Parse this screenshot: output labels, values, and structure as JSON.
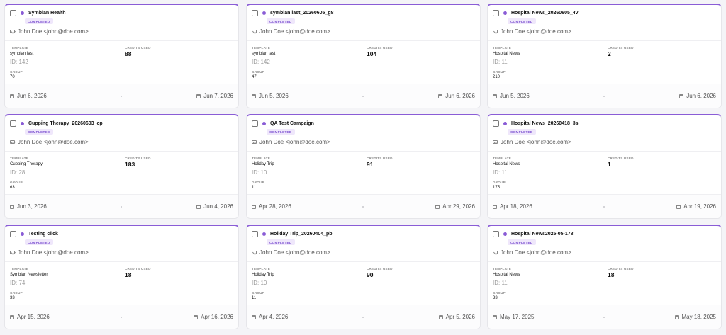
{
  "cards": [
    {
      "title": "Symbian Health",
      "status": "COMPLETED",
      "owner": "John Doe <john@doe.com>",
      "template_label": "TEMPLATE",
      "template": "symbian last",
      "template_id": "ID: 142",
      "credits_label": "CREDITS USED",
      "credits": "88",
      "group_label": "GROUP",
      "group": "70",
      "start_date": "Jun 6, 2026",
      "end_date": "Jun 7, 2026"
    },
    {
      "title": "symbian last_20260605_g8",
      "status": "COMPLETED",
      "owner": "John Doe <john@doe.com>",
      "template_label": "TEMPLATE",
      "template": "symbian last",
      "template_id": "ID: 142",
      "credits_label": "CREDITS USED",
      "credits": "104",
      "group_label": "GROUP",
      "group": "47",
      "start_date": "Jun 5, 2026",
      "end_date": "Jun 6, 2026"
    },
    {
      "title": "Hospital News_20260605_4v",
      "status": "COMPLETED",
      "owner": "John Doe <john@doe.com>",
      "template_label": "TEMPLATE",
      "template": "Hospital News",
      "template_id": "ID: 11",
      "credits_label": "CREDITS USED",
      "credits": "2",
      "group_label": "GROUP",
      "group": "210",
      "start_date": "Jun 5, 2026",
      "end_date": "Jun 6, 2026"
    },
    {
      "title": "Cupping Therapy_20260603_cp",
      "status": "COMPLETED",
      "owner": "John Doe <john@doe.com>",
      "template_label": "TEMPLATE",
      "template": "Cupping Therapy",
      "template_id": "ID: 28",
      "credits_label": "CREDITS USED",
      "credits": "183",
      "group_label": "GROUP",
      "group": "63",
      "start_date": "Jun 3, 2026",
      "end_date": "Jun 4, 2026"
    },
    {
      "title": "QA Test Campaign",
      "status": "COMPLETED",
      "owner": "John Doe <john@doe.com>",
      "template_label": "TEMPLATE",
      "template": "Holiday Trip",
      "template_id": "ID: 10",
      "credits_label": "CREDITS USED",
      "credits": "91",
      "group_label": "GROUP",
      "group": "11",
      "start_date": "Apr 28, 2026",
      "end_date": "Apr 29, 2026"
    },
    {
      "title": "Hospital News_20260418_3s",
      "status": "COMPLETED",
      "owner": "John Doe <john@doe.com>",
      "template_label": "TEMPLATE",
      "template": "Hospital News",
      "template_id": "ID: 11",
      "credits_label": "CREDITS USED",
      "credits": "1",
      "group_label": "GROUP",
      "group": "175",
      "start_date": "Apr 18, 2026",
      "end_date": "Apr 19, 2026"
    },
    {
      "title": "Testing click",
      "status": "COMPLETED",
      "owner": "John Doe <john@doe.com>",
      "template_label": "TEMPLATE",
      "template": "Symbian Newsletter",
      "template_id": "ID: 74",
      "credits_label": "CREDITS USED",
      "credits": "18",
      "group_label": "GROUP",
      "group": "33",
      "start_date": "Apr 15, 2026",
      "end_date": "Apr 16, 2026"
    },
    {
      "title": "Holiday Trip_20260404_pb",
      "status": "COMPLETED",
      "owner": "John Doe <john@doe.com>",
      "template_label": "TEMPLATE",
      "template": "Holiday Trip",
      "template_id": "ID: 10",
      "credits_label": "CREDITS USED",
      "credits": "90",
      "group_label": "GROUP",
      "group": "11",
      "start_date": "Apr 4, 2026",
      "end_date": "Apr 5, 2026"
    },
    {
      "title": "Hospital News2025-05-178",
      "status": "COMPLETED",
      "owner": "John Doe <john@doe.com>",
      "template_label": "TEMPLATE",
      "template": "Hospital News",
      "template_id": "ID: 11",
      "credits_label": "CREDITS USED",
      "credits": "18",
      "group_label": "GROUP",
      "group": "33",
      "start_date": "May 17, 2025",
      "end_date": "May 18, 2025"
    }
  ]
}
